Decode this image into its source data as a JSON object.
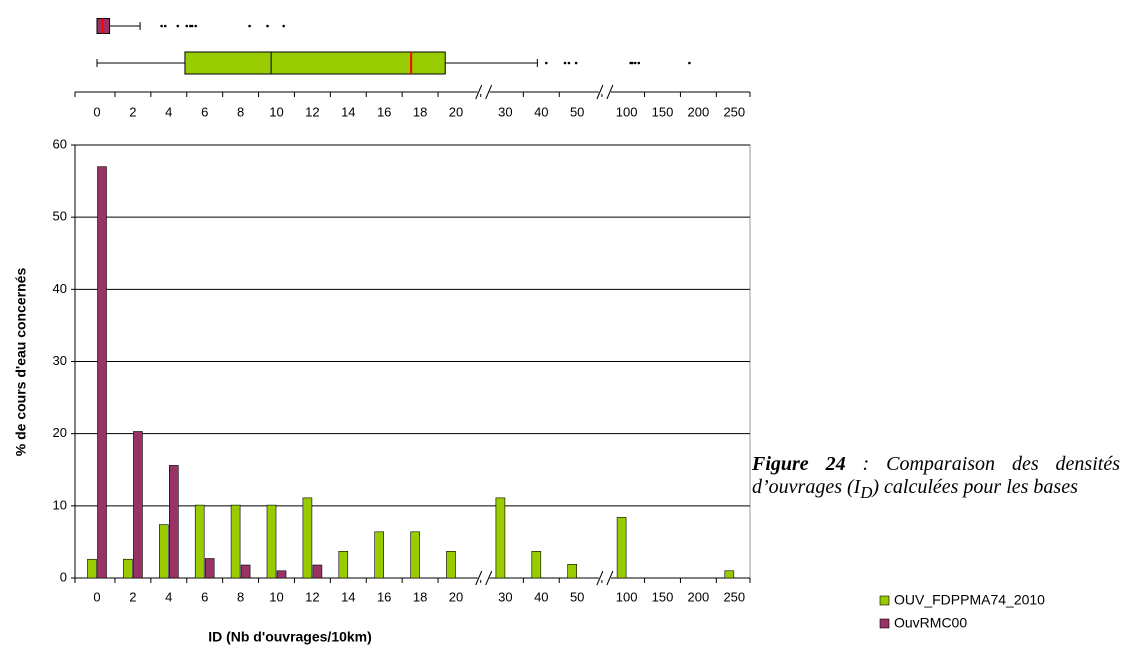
{
  "chart_data": {
    "type": "bar",
    "xlabel": "ID (Nb d'ouvrages/10km)",
    "ylabel": "% de cours d'eau concernés",
    "categories": [
      "0",
      "2",
      "4",
      "6",
      "8",
      "10",
      "12",
      "14",
      "16",
      "18",
      "20",
      "30",
      "40",
      "50",
      "100",
      "150",
      "200",
      "250"
    ],
    "series": [
      {
        "name": "OUV_FDPPMA74_2010",
        "color": "#99cc00",
        "values": [
          2.6,
          2.6,
          7.4,
          10.1,
          10.1,
          10.1,
          11.1,
          3.7,
          6.4,
          6.4,
          3.7,
          11.1,
          3.7,
          1.9,
          8.4,
          0,
          0,
          1.0
        ],
        "box": {
          "min": 0,
          "q1": 4.9,
          "median": 9.7,
          "mean": 17.5,
          "q3": 19.4,
          "max": 38.9,
          "outliers": [
            41.4,
            46.6,
            47.7,
            49.7,
            105.6,
            108,
            112,
            117,
            187.5
          ]
        }
      },
      {
        "name": "OuvRMC00",
        "color": "#993366",
        "values": [
          57,
          20.3,
          15.6,
          2.7,
          1.8,
          1.0,
          1.8,
          0,
          0,
          0,
          0,
          0,
          0,
          0,
          0,
          0,
          0,
          0
        ],
        "box": {
          "min": 0,
          "q1": 0,
          "median": 0.3,
          "q3": 0.7,
          "max": 2.4,
          "outliers": [
            3.6,
            3.8,
            4.5,
            5.0,
            5.2,
            5.3,
            5.5,
            8.5,
            9.5,
            10.4
          ]
        }
      }
    ],
    "ylim": [
      0,
      60
    ],
    "yticks": [
      0,
      10,
      20,
      30,
      40,
      50,
      60
    ],
    "grid": true
  },
  "caption": {
    "label": "Figure 24",
    "text1": " : Comparaison des densités d’ouvrages (I",
    "sub": "D",
    "text2": ") calculées pour les bases"
  }
}
